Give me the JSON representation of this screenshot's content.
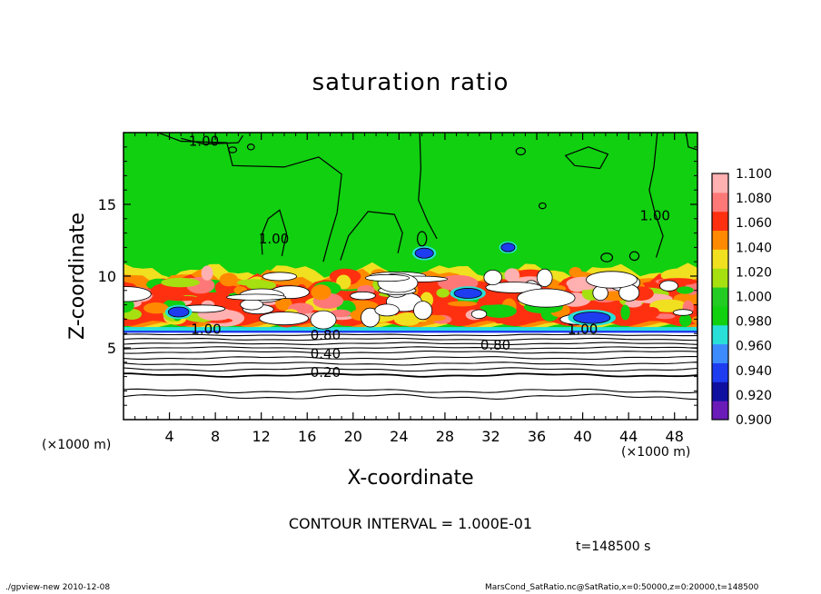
{
  "chart_data": {
    "type": "heatmap",
    "title": "saturation ratio",
    "xlabel": "X-coordinate",
    "ylabel": "Z-coordinate",
    "x_unit_label": "(×1000 m)",
    "x_unit_label_right": "(×1000 m)",
    "xlim": [
      0,
      50
    ],
    "ylim": [
      0,
      20
    ],
    "xticks": [
      4,
      8,
      12,
      16,
      20,
      24,
      28,
      32,
      36,
      40,
      44,
      48
    ],
    "yticks": [
      5,
      10,
      15
    ],
    "colorbar": {
      "levels": [
        "0.900",
        "0.920",
        "0.940",
        "0.960",
        "0.980",
        "1.000",
        "1.020",
        "1.040",
        "1.060",
        "1.080",
        "1.100"
      ],
      "colors": [
        "#6a1bb8",
        "#1010a0",
        "#1e3cf0",
        "#3c8cff",
        "#28e0d8",
        "#10d010",
        "#22cc22",
        "#a6e010",
        "#f0e020",
        "#ff8a00",
        "#ff3010",
        "#ff7878",
        "#ffb0b0"
      ]
    },
    "contour_labels": [
      {
        "text": "1.00",
        "x": 7.0,
        "z": 19.4
      },
      {
        "text": "1.00",
        "x": 13.1,
        "z": 12.6
      },
      {
        "text": "1.00",
        "x": 46.3,
        "z": 14.2
      },
      {
        "text": "1.00",
        "x": 7.2,
        "z": 6.3
      },
      {
        "text": "1.00",
        "x": 40.0,
        "z": 6.3
      },
      {
        "text": "0.80",
        "x": 17.6,
        "z": 5.9
      },
      {
        "text": "0.80",
        "x": 32.4,
        "z": 5.2
      },
      {
        "text": "0.40",
        "x": 17.6,
        "z": 4.6
      },
      {
        "text": "0.20",
        "x": 17.6,
        "z": 3.3
      }
    ]
  },
  "contour_interval": "CONTOUR INTERVAL = 1.000E-01",
  "time_label": "t=148500 s",
  "footer_left": "./gpview-new  2010-12-08",
  "footer_right": "MarsCond_SatRatio.nc@SatRatio,x=0:50000,z=0:20000,t=148500"
}
